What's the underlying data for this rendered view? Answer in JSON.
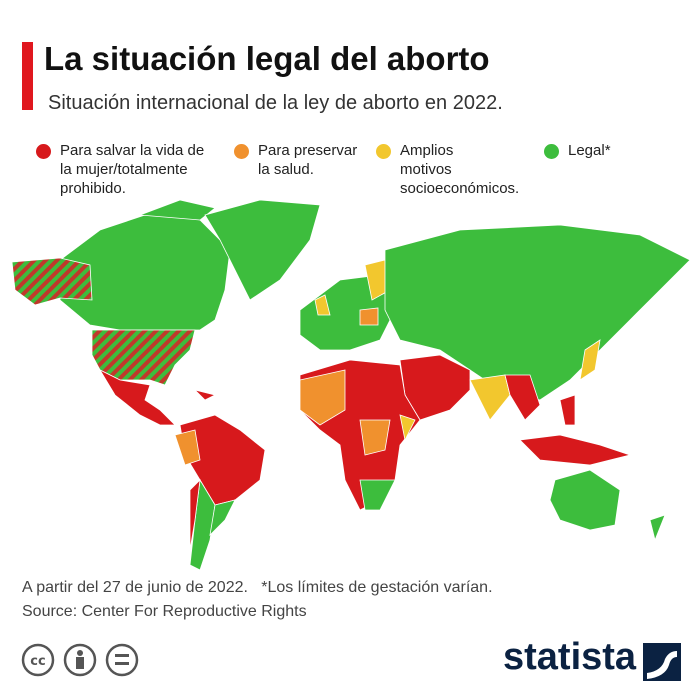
{
  "header": {
    "title": "La situación legal del aborto",
    "subtitle": "Situación internacional de la ley de aborto en 2022."
  },
  "legend": [
    {
      "color": "#d7191c",
      "lines": [
        "Para salvar la vida de",
        "la mujer/totalmente",
        "prohibido."
      ]
    },
    {
      "color": "#f0912e",
      "lines": [
        "Para preservar",
        "la salud."
      ]
    },
    {
      "color": "#f2c72e",
      "lines": [
        "Amplios",
        "motivos",
        "socioeconómicos."
      ]
    },
    {
      "color": "#3dbd3d",
      "lines": [
        "Legal*"
      ]
    }
  ],
  "footer": {
    "note": "A partir del 27 de junio de 2022.   *Los límites de gestación varían.",
    "source": "Source: Center For Reproductive Rights",
    "logo": "statista"
  }
}
